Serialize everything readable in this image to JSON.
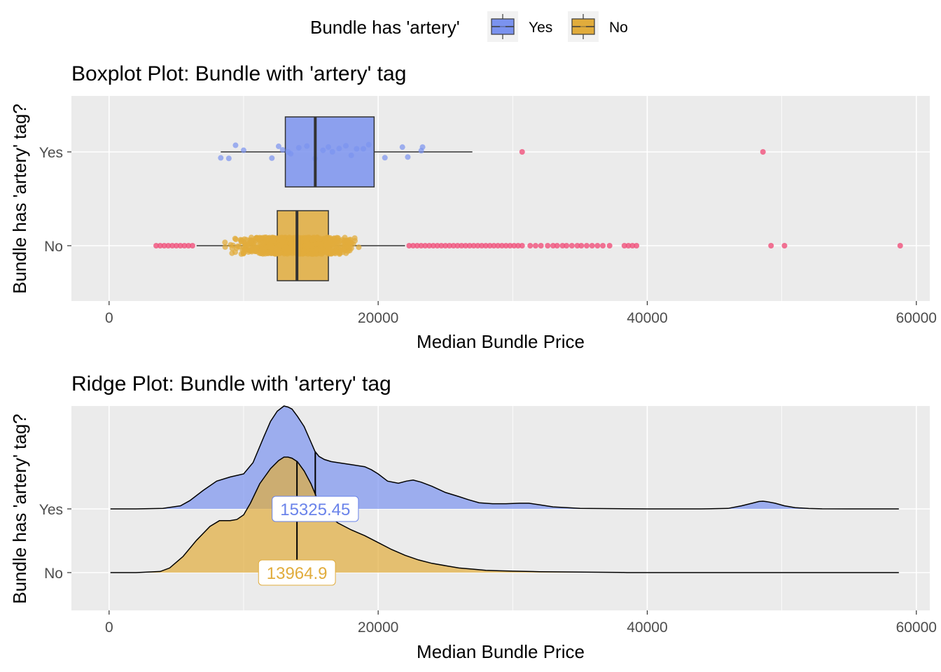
{
  "legend": {
    "title": "Bundle has 'artery'",
    "items": [
      {
        "label": "Yes",
        "fill": "#7b93ef",
        "stroke": "#3a3a3a"
      },
      {
        "label": "No",
        "fill": "#e1ac3c",
        "stroke": "#3a3a3a"
      }
    ]
  },
  "chart_data": [
    {
      "type": "boxplot",
      "title": "Boxplot Plot: Bundle with 'artery' tag",
      "xlabel": "Median Bundle Price",
      "ylabel": "Bundle has 'artery' tag?",
      "xlim": [
        -2800,
        61000
      ],
      "xticks": [
        0,
        20000,
        40000,
        60000
      ],
      "xtick_labels": [
        "0",
        "20000",
        "40000",
        "60000"
      ],
      "categories": [
        "Yes",
        "No"
      ],
      "grid": true,
      "outlier_color": "#f0507a",
      "boxes": [
        {
          "group": "Yes",
          "color": "#7b93ef",
          "whisker_low": 8300,
          "q1": 13100,
          "median": 15325,
          "q3": 19700,
          "whisker_high": 27000,
          "points": [
            8300,
            8900,
            9400,
            10000,
            12100,
            12600,
            12900,
            13300,
            13500,
            14100,
            14700,
            15300,
            15900,
            16300,
            16600,
            17100,
            17600,
            18000,
            18400,
            18900,
            19300,
            20500,
            21800,
            22200,
            23200,
            23300
          ],
          "outliers": [
            30700,
            48600
          ]
        },
        {
          "group": "No",
          "color": "#e1ac3c",
          "whisker_low": 6500,
          "q1": 12500,
          "median": 13965,
          "q3": 16300,
          "whisker_high": 22000,
          "jitter_range": [
            8000,
            19700
          ],
          "outliers": [
            3500,
            3800,
            4100,
            4400,
            4700,
            5000,
            5300,
            5600,
            5900,
            6200,
            22300,
            22600,
            22900,
            23200,
            23500,
            23800,
            24100,
            24400,
            24700,
            25000,
            25300,
            25600,
            25900,
            26200,
            26500,
            26800,
            27100,
            27400,
            27700,
            28000,
            28300,
            28600,
            28900,
            29200,
            29500,
            29800,
            30100,
            30400,
            30700,
            31300,
            31700,
            32100,
            32600,
            33000,
            33300,
            33700,
            34000,
            34400,
            34800,
            35100,
            35500,
            35900,
            36300,
            36700,
            37200,
            38300,
            38600,
            38900,
            39200,
            49200,
            50200,
            58800
          ]
        }
      ]
    },
    {
      "type": "ridgeline",
      "title": "Ridge Plot: Bundle with 'artery' tag",
      "xlabel": "Median Bundle Price",
      "ylabel": "Bundle has 'artery' tag?",
      "xlim": [
        -2800,
        61000
      ],
      "xticks": [
        0,
        20000,
        40000,
        60000
      ],
      "xtick_labels": [
        "0",
        "20000",
        "40000",
        "60000"
      ],
      "categories": [
        "Yes",
        "No"
      ],
      "grid": true,
      "series": [
        {
          "name": "Yes",
          "color": "#7b93ef",
          "label_color": "#6a83ea",
          "median": 15325.45,
          "median_label": "15325.45",
          "x": [
            100,
            2000,
            4000,
            5300,
            6000,
            7000,
            8000,
            9000,
            10000,
            10700,
            11500,
            12000,
            12500,
            13000,
            13300,
            13600,
            14000,
            14500,
            15000,
            15300,
            15600,
            16000,
            16500,
            17000,
            18000,
            19000,
            19500,
            20000,
            20700,
            21500,
            22100,
            22600,
            23200,
            24000,
            25000,
            26000,
            26700,
            27500,
            28500,
            29500,
            30500,
            31200,
            32000,
            33000,
            35000,
            40000,
            44000,
            46000,
            47000,
            47800,
            48300,
            48600,
            48900,
            49500,
            50200,
            51000,
            52000,
            53000,
            55000,
            58700
          ],
          "y": [
            0,
            0,
            0.005,
            0.03,
            0.08,
            0.18,
            0.27,
            0.31,
            0.34,
            0.45,
            0.7,
            0.85,
            0.95,
            1.0,
            0.99,
            0.97,
            0.9,
            0.8,
            0.65,
            0.56,
            0.51,
            0.48,
            0.46,
            0.45,
            0.43,
            0.41,
            0.38,
            0.34,
            0.27,
            0.25,
            0.27,
            0.28,
            0.26,
            0.22,
            0.16,
            0.12,
            0.09,
            0.06,
            0.05,
            0.05,
            0.055,
            0.055,
            0.04,
            0.02,
            0.005,
            0,
            0,
            0.005,
            0.03,
            0.055,
            0.072,
            0.075,
            0.07,
            0.055,
            0.03,
            0.012,
            0.004,
            0.001,
            0,
            0
          ]
        },
        {
          "name": "No",
          "color": "#e1ac3c",
          "label_color": "#e1ac3c",
          "median": 13964.9,
          "median_label": "13964.9",
          "x": [
            100,
            2000,
            3800,
            4500,
            5500,
            6500,
            7500,
            8200,
            9000,
            9500,
            10000,
            10500,
            11200,
            12000,
            12600,
            13000,
            13300,
            13600,
            14000,
            14500,
            15000,
            15500,
            16000,
            17000,
            18000,
            19000,
            20000,
            21000,
            22000,
            23000,
            24000,
            25000,
            26000,
            27000,
            28000,
            29000,
            30000,
            32000,
            35000,
            38000,
            38500,
            40000,
            45000,
            50000,
            58700
          ],
          "y": [
            0,
            0,
            0.01,
            0.04,
            0.14,
            0.28,
            0.4,
            0.45,
            0.45,
            0.46,
            0.5,
            0.6,
            0.77,
            0.9,
            0.97,
            1.0,
            1.0,
            0.99,
            0.96,
            0.88,
            0.77,
            0.63,
            0.52,
            0.43,
            0.37,
            0.32,
            0.26,
            0.2,
            0.15,
            0.11,
            0.08,
            0.06,
            0.04,
            0.03,
            0.02,
            0.016,
            0.013,
            0.008,
            0.004,
            0.002,
            0,
            0,
            0,
            0,
            0
          ]
        }
      ]
    }
  ]
}
